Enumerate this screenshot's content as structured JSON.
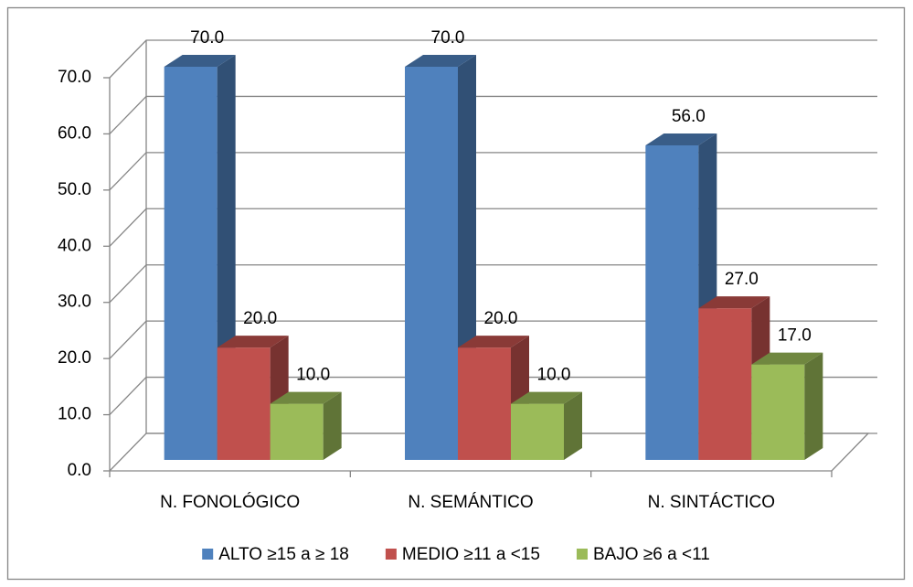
{
  "chart_data": {
    "type": "bar3d",
    "categories": [
      "N. FONOLÓGICO",
      "N. SEMÁNTICO",
      "N. SINTÁCTICO"
    ],
    "series": [
      {
        "name": "ALTO ≥15 a ≥ 18",
        "color": "#4f81bd",
        "values": [
          70,
          70,
          56
        ],
        "value_labels": [
          "70.0",
          "70.0",
          "56.0"
        ]
      },
      {
        "name": "MEDIO ≥11 a <15",
        "color": "#c0504d",
        "values": [
          20,
          20,
          27
        ],
        "value_labels": [
          "20.0",
          "20.0",
          "27.0"
        ]
      },
      {
        "name": "BAJO ≥6 a <11",
        "color": "#9bbb59",
        "values": [
          10,
          10,
          17
        ],
        "value_labels": [
          "10.0",
          "10.0",
          "17.0"
        ]
      }
    ],
    "ylim": [
      0,
      70
    ],
    "yticks": [
      {
        "value": 0,
        "label": "0.0"
      },
      {
        "value": 10,
        "label": "10.0"
      },
      {
        "value": 20,
        "label": "20.0"
      },
      {
        "value": 30,
        "label": "30.0"
      },
      {
        "value": 40,
        "label": "40.0"
      },
      {
        "value": 50,
        "label": "50.0"
      },
      {
        "value": 60,
        "label": "60.0"
      },
      {
        "value": 70,
        "label": "70.0"
      }
    ],
    "grid": true,
    "legend": "bottom"
  }
}
